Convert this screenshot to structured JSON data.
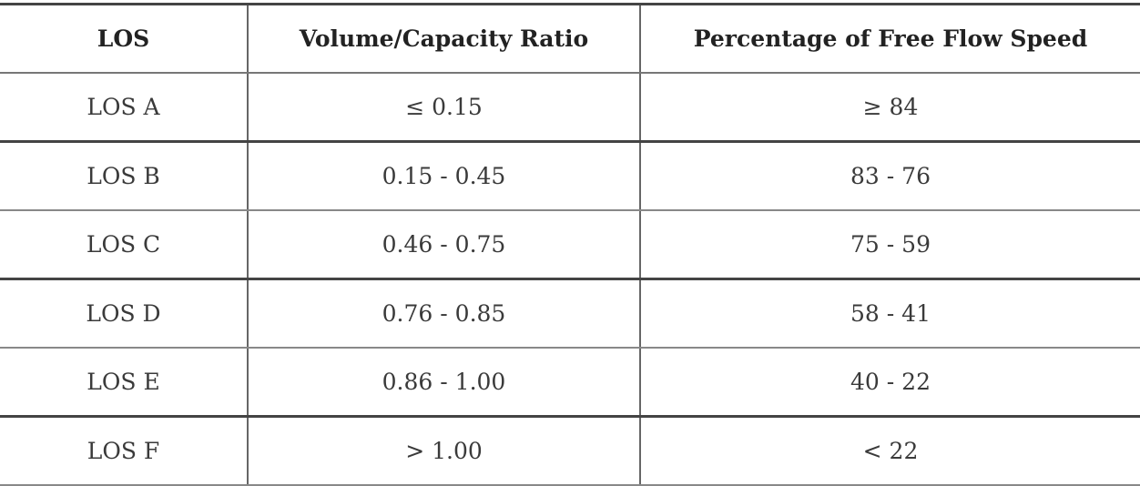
{
  "table": {
    "header": [
      "LOS",
      "Volume/Capacity Ratio",
      "Percentage of Free Flow Speed"
    ],
    "rows": [
      [
        "LOS A",
        "≤ 0.15",
        "≥ 84"
      ],
      [
        "LOS B",
        "0.15 - 0.45",
        "83 - 76"
      ],
      [
        "LOS C",
        "0.46 - 0.75",
        "75 - 59"
      ],
      [
        "LOS D",
        "0.76 - 0.85",
        "58 - 41"
      ],
      [
        "LOS E",
        "0.86 - 1.00",
        "40 - 22"
      ],
      [
        "LOS F",
        "> 1.00",
        "< 22"
      ]
    ]
  }
}
